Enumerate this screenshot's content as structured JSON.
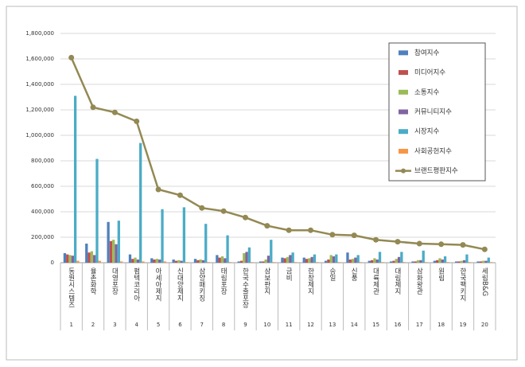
{
  "chart_data": {
    "type": "bar-line",
    "categories": [
      "동원시스템즈",
      "율촌화학",
      "대영포장",
      "펌텍코리아",
      "아세아제지",
      "신대양제지",
      "삼양패키징",
      "태림포장",
      "한국수출포장",
      "삼보판지",
      "금비",
      "한창제지",
      "승일",
      "신풍",
      "대륙제관",
      "대림제지",
      "삼화왕관",
      "원림",
      "한국팩키지",
      "세림B&G"
    ],
    "ranks": [
      1,
      2,
      3,
      4,
      5,
      6,
      7,
      8,
      9,
      10,
      11,
      12,
      13,
      14,
      15,
      16,
      17,
      18,
      19,
      20
    ],
    "series": [
      {
        "name": "참여지수",
        "color": "#4f81bd",
        "values": [
          75000,
          150000,
          320000,
          65000,
          35000,
          25000,
          30000,
          60000,
          10000,
          10000,
          40000,
          40000,
          15000,
          80000,
          15000,
          10000,
          10000,
          15000,
          10000,
          10000
        ]
      },
      {
        "name": "미디어지수",
        "color": "#c0504d",
        "values": [
          65000,
          80000,
          170000,
          30000,
          25000,
          15000,
          20000,
          40000,
          15000,
          10000,
          35000,
          30000,
          25000,
          25000,
          20000,
          15000,
          10000,
          20000,
          10000,
          10000
        ]
      },
      {
        "name": "소통지수",
        "color": "#9bbb59",
        "values": [
          60000,
          90000,
          180000,
          40000,
          30000,
          20000,
          25000,
          50000,
          75000,
          25000,
          45000,
          35000,
          60000,
          30000,
          35000,
          30000,
          20000,
          35000,
          15000,
          15000
        ]
      },
      {
        "name": "커뮤니티지수",
        "color": "#8064a2",
        "values": [
          55000,
          60000,
          145000,
          25000,
          25000,
          15000,
          20000,
          35000,
          85000,
          55000,
          60000,
          45000,
          50000,
          40000,
          25000,
          45000,
          20000,
          25000,
          20000,
          15000
        ]
      },
      {
        "name": "시장지수",
        "color": "#4bacc6",
        "values": [
          1310000,
          815000,
          330000,
          940000,
          420000,
          435000,
          305000,
          215000,
          120000,
          180000,
          80000,
          65000,
          65000,
          60000,
          85000,
          85000,
          95000,
          50000,
          65000,
          40000
        ]
      },
      {
        "name": "사회공헌지수",
        "color": "#f79646",
        "values": [
          15000,
          15000,
          10000,
          10000,
          10000,
          5000,
          5000,
          5000,
          5000,
          5000,
          5000,
          5000,
          5000,
          5000,
          5000,
          5000,
          5000,
          5000,
          5000,
          5000
        ]
      },
      {
        "name": "브랜드평판지수",
        "color": "#938953",
        "type": "line",
        "values": [
          1610000,
          1220000,
          1180000,
          1110000,
          575000,
          530000,
          430000,
          405000,
          355000,
          290000,
          255000,
          255000,
          220000,
          215000,
          180000,
          165000,
          150000,
          145000,
          140000,
          105000
        ]
      }
    ],
    "ylim": [
      0,
      1800000
    ],
    "yticks": [
      0,
      {
        "value": 200000,
        "label": "200,000"
      },
      {
        "value": 400000,
        "label": "400,000"
      },
      {
        "value": 600000,
        "label": "600,000"
      },
      {
        "value": 800000,
        "label": "800,000"
      },
      {
        "value": 1000000,
        "label": "1,000,000"
      },
      {
        "value": 1200000,
        "label": "1,200,000"
      },
      {
        "value": 1400000,
        "label": "1,400,000"
      },
      {
        "value": 1600000,
        "label": "1,600,000"
      },
      {
        "value": 1800000,
        "label": "1,800,000"
      }
    ],
    "grid": true,
    "legend": "upper right"
  }
}
